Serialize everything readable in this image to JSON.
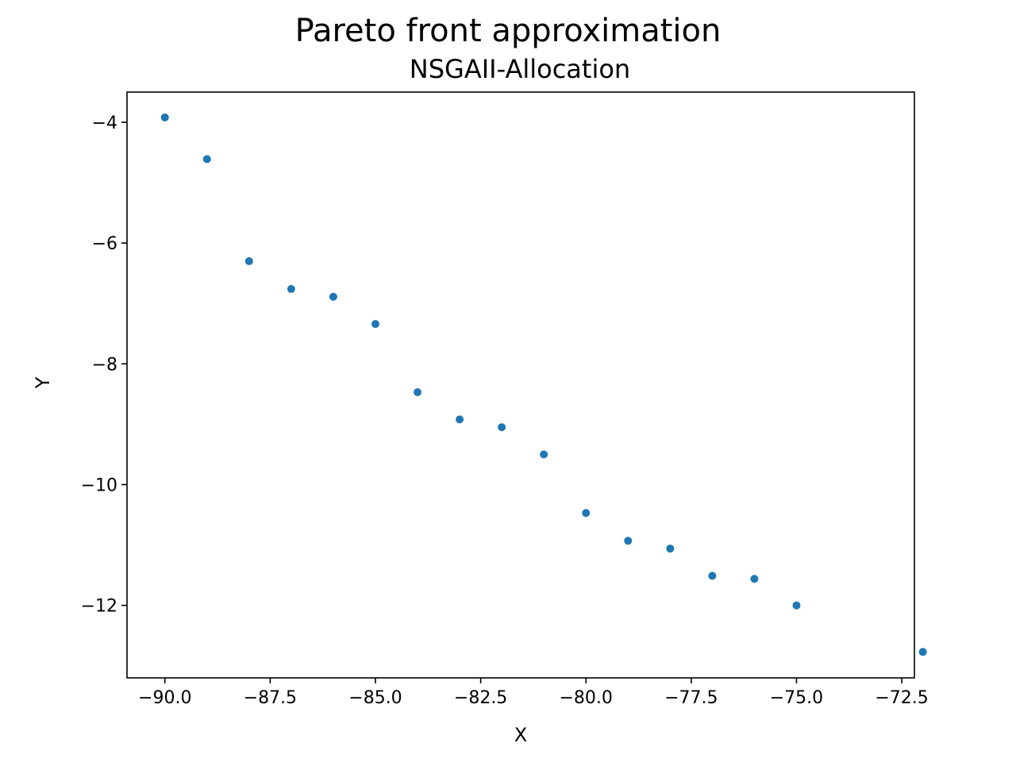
{
  "chart_data": {
    "type": "scatter",
    "title": "Pareto front approximation",
    "subtitle": "NSGAII-Allocation",
    "xlabel": "X",
    "ylabel": "Y",
    "xlim": [
      -90.9,
      -72.2
    ],
    "ylim": [
      -13.2,
      -3.5
    ],
    "xticks": [
      -90.0,
      -87.5,
      -85.0,
      -82.5,
      -80.0,
      -77.5,
      -75.0,
      -72.5
    ],
    "xtick_labels": [
      "−90.0",
      "−87.5",
      "−85.0",
      "−82.5",
      "−80.0",
      "−77.5",
      "−75.0",
      "−72.5"
    ],
    "yticks": [
      -4,
      -6,
      -8,
      -10,
      -12
    ],
    "ytick_labels": [
      "−4",
      "−6",
      "−8",
      "−10",
      "−12"
    ],
    "grid": false,
    "marker_color": "#1f77b4",
    "points": [
      {
        "x": -90,
        "y": -3.92
      },
      {
        "x": -89,
        "y": -4.61
      },
      {
        "x": -88,
        "y": -6.3
      },
      {
        "x": -87,
        "y": -6.76
      },
      {
        "x": -86,
        "y": -6.89
      },
      {
        "x": -85,
        "y": -7.34
      },
      {
        "x": -84,
        "y": -8.47
      },
      {
        "x": -83,
        "y": -8.92
      },
      {
        "x": -82,
        "y": -9.05
      },
      {
        "x": -81,
        "y": -9.5
      },
      {
        "x": -80,
        "y": -10.47
      },
      {
        "x": -79,
        "y": -10.93
      },
      {
        "x": -78,
        "y": -11.06
      },
      {
        "x": -77,
        "y": -11.51
      },
      {
        "x": -76,
        "y": -11.56
      },
      {
        "x": -75,
        "y": -12.0
      },
      {
        "x": -72,
        "y": -12.77
      }
    ]
  }
}
